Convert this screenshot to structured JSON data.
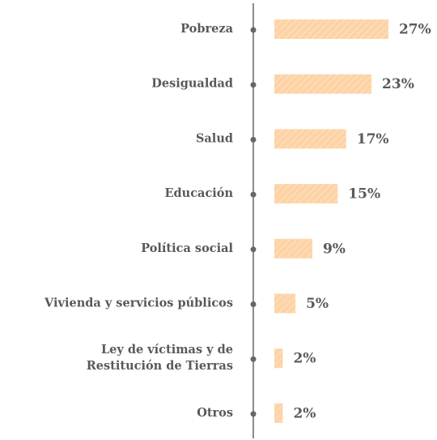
{
  "chart_data": {
    "type": "bar",
    "orientation": "horizontal",
    "categories": [
      "Pobreza",
      "Desigualdad",
      "Salud",
      "Educación",
      "Política social",
      "Vivienda y servicios públicos",
      "Ley de víctimas y de\nRestitución de Tierras",
      "Otros"
    ],
    "values": [
      27,
      23,
      17,
      15,
      9,
      5,
      2,
      2
    ],
    "value_labels": [
      "27%",
      "23%",
      "17%",
      "15%",
      "9%",
      "5%",
      "2%",
      "2%"
    ],
    "color": "#fdd3a6"
  }
}
